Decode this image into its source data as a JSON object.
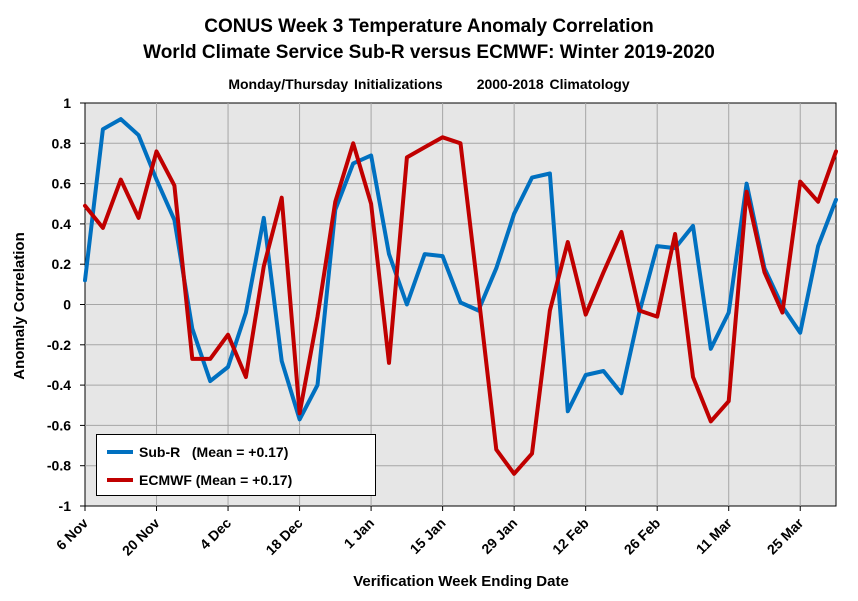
{
  "chart_data": {
    "type": "line",
    "title": "CONUS Week 3 Temperature Anomaly Correlation",
    "subtitle": "World Climate Service Sub-R versus ECMWF: Winter 2019-2020",
    "subtitle2_left": "Monday/Thursday Initializations",
    "subtitle2_right": "2000-2018 Climatology",
    "xlabel": "Verification Week Ending Date",
    "ylabel": "Anomaly Correlation",
    "ylim": [
      -1,
      1
    ],
    "yticks": [
      "1",
      "0.8",
      "0.6",
      "0.4",
      "0.2",
      "0",
      "-0.2",
      "-0.4",
      "-0.6",
      "-0.8",
      "-1"
    ],
    "x_tick_labels": [
      "6 Nov",
      "20 Nov",
      "4 Dec",
      "18 Dec",
      "1 Jan",
      "15 Jan",
      "29 Jan",
      "12 Feb",
      "26 Feb",
      "11 Mar",
      "25 Mar"
    ],
    "grid": true,
    "legend_placement": "bottom-left",
    "series": [
      {
        "name": "Sub-R   (Mean = +0.17)",
        "color": "#0070C0",
        "values": [
          0.12,
          0.87,
          0.92,
          0.84,
          0.62,
          0.42,
          -0.12,
          -0.38,
          -0.31,
          -0.04,
          0.43,
          -0.28,
          -0.57,
          -0.4,
          0.47,
          0.7,
          0.74,
          0.25,
          0.0,
          0.25,
          0.24,
          0.01,
          -0.03,
          0.18,
          0.45,
          0.63,
          0.65,
          -0.53,
          -0.35,
          -0.33,
          -0.44,
          -0.04,
          0.29,
          0.28,
          0.39,
          -0.22,
          -0.04,
          0.6,
          0.18,
          -0.01,
          -0.14,
          0.29,
          0.52
        ]
      },
      {
        "name": "ECMWF (Mean = +0.17)",
        "color": "#C00000",
        "values": [
          0.49,
          0.38,
          0.62,
          0.43,
          0.76,
          0.59,
          -0.27,
          -0.27,
          -0.15,
          -0.36,
          0.19,
          0.53,
          -0.54,
          -0.06,
          0.51,
          0.8,
          0.5,
          -0.29,
          0.73,
          0.78,
          0.83,
          0.8,
          0.05,
          -0.72,
          -0.84,
          -0.74,
          -0.03,
          0.31,
          -0.05,
          0.16,
          0.36,
          -0.03,
          -0.06,
          0.35,
          -0.36,
          -0.58,
          -0.48,
          0.56,
          0.16,
          -0.04,
          0.61,
          0.51,
          0.76
        ]
      }
    ]
  },
  "colors": {
    "plot_background": "#e6e6e6",
    "gridline": "#a6a6a6"
  }
}
